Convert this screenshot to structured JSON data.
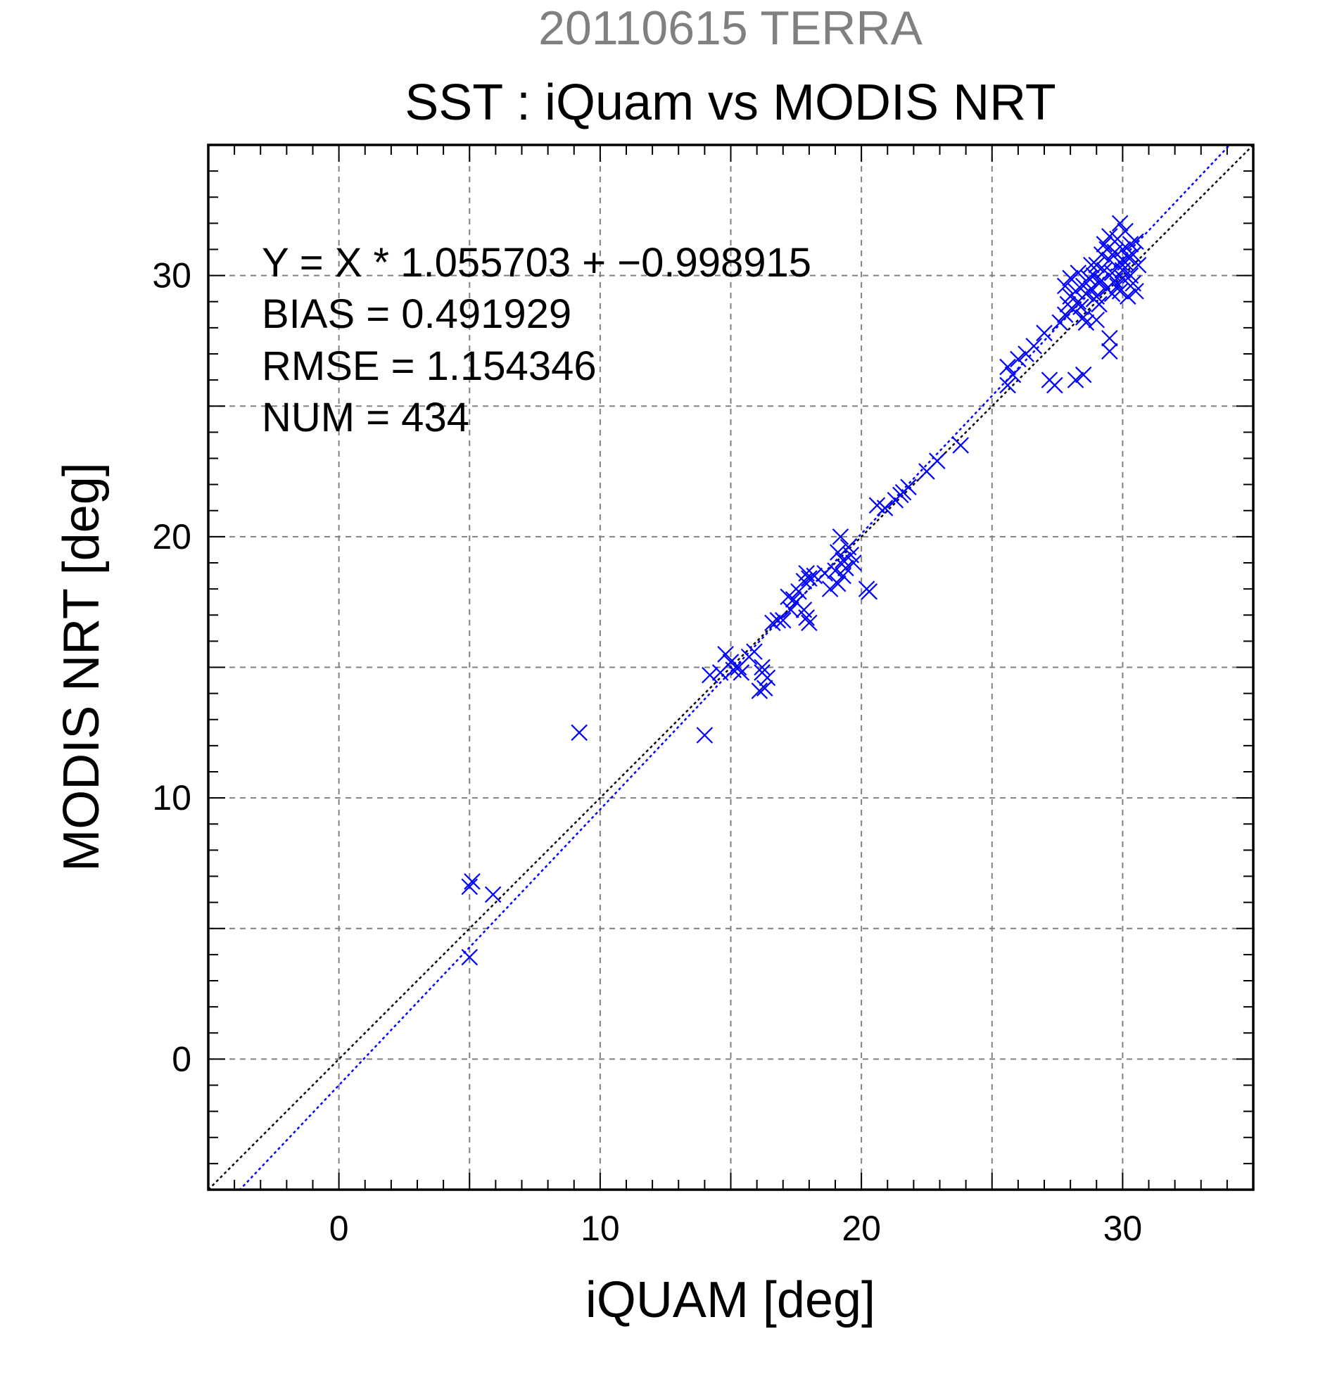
{
  "chart_data": {
    "type": "scatter",
    "suptitle": "20110615 TERRA",
    "title": "SST : iQuam vs MODIS NRT",
    "xlabel": "iQUAM [deg]",
    "ylabel": "MODIS NRT [deg]",
    "xlim": [
      -5,
      35
    ],
    "ylim": [
      -5,
      35
    ],
    "xticks": [
      0,
      10,
      20,
      30
    ],
    "yticks": [
      0,
      10,
      20,
      30
    ],
    "grid_step": 5,
    "grid": true,
    "colors": {
      "suptitle": "#808080",
      "points": "#0000ff",
      "fit_line": "#0000ff",
      "identity_line": "#000000",
      "grid": "#808080"
    },
    "annotations": [
      "Y = X * 1.055703 + −0.998915",
      "BIAS = 0.491929",
      "RMSE = 1.154346",
      "NUM = 434"
    ],
    "fit": {
      "slope": 1.055703,
      "intercept": -0.998915
    },
    "identity": {
      "slope": 1,
      "intercept": 0
    },
    "series": [
      {
        "marker": "x",
        "points": [
          [
            5.0,
            6.6
          ],
          [
            5.1,
            6.8
          ],
          [
            5.9,
            6.3
          ],
          [
            5.0,
            3.9
          ],
          [
            9.2,
            12.5
          ],
          [
            14.0,
            12.4
          ],
          [
            14.2,
            14.7
          ],
          [
            14.6,
            14.8
          ],
          [
            14.8,
            15.5
          ],
          [
            15.0,
            15.2
          ],
          [
            15.1,
            14.9
          ],
          [
            15.3,
            15.0
          ],
          [
            15.4,
            14.8
          ],
          [
            15.7,
            15.4
          ],
          [
            15.9,
            15.6
          ],
          [
            16.2,
            14.8
          ],
          [
            16.3,
            14.2
          ],
          [
            16.1,
            14.1
          ],
          [
            16.4,
            14.6
          ],
          [
            16.2,
            15.0
          ],
          [
            16.6,
            16.7
          ],
          [
            16.8,
            16.8
          ],
          [
            17.0,
            16.8
          ],
          [
            17.3,
            17.2
          ],
          [
            17.4,
            17.6
          ],
          [
            17.6,
            17.9
          ],
          [
            17.8,
            18.3
          ],
          [
            17.9,
            18.6
          ],
          [
            18.0,
            18.4
          ],
          [
            18.2,
            18.5
          ],
          [
            17.8,
            17.2
          ],
          [
            17.9,
            16.9
          ],
          [
            18.0,
            16.7
          ],
          [
            17.5,
            17.5
          ],
          [
            17.2,
            17.7
          ],
          [
            18.6,
            18.6
          ],
          [
            18.8,
            18.0
          ],
          [
            19.0,
            18.7
          ],
          [
            19.1,
            18.2
          ],
          [
            19.2,
            20.0
          ],
          [
            19.3,
            19.1
          ],
          [
            19.4,
            18.8
          ],
          [
            19.5,
            19.6
          ],
          [
            19.6,
            19.3
          ],
          [
            19.7,
            19.0
          ],
          [
            19.3,
            18.5
          ],
          [
            19.1,
            19.4
          ],
          [
            20.2,
            18.0
          ],
          [
            20.3,
            17.9
          ],
          [
            20.6,
            21.2
          ],
          [
            20.9,
            21.1
          ],
          [
            21.3,
            21.4
          ],
          [
            21.6,
            21.7
          ],
          [
            21.8,
            21.9
          ],
          [
            21.5,
            21.6
          ],
          [
            22.5,
            22.5
          ],
          [
            22.9,
            22.9
          ],
          [
            23.8,
            23.5
          ],
          [
            25.6,
            26.5
          ],
          [
            25.8,
            26.2
          ],
          [
            25.6,
            25.8
          ],
          [
            26.0,
            26.8
          ],
          [
            26.3,
            27.0
          ],
          [
            26.6,
            27.3
          ],
          [
            27.2,
            26.0
          ],
          [
            27.4,
            25.8
          ],
          [
            28.2,
            26.0
          ],
          [
            28.5,
            26.2
          ],
          [
            27.0,
            27.8
          ],
          [
            27.6,
            28.2
          ],
          [
            27.8,
            28.5
          ],
          [
            27.9,
            28.9
          ],
          [
            28.0,
            29.2
          ],
          [
            28.1,
            28.7
          ],
          [
            28.2,
            29.4
          ],
          [
            28.3,
            29.0
          ],
          [
            28.4,
            28.8
          ],
          [
            28.5,
            29.6
          ],
          [
            28.6,
            29.3
          ],
          [
            28.7,
            29.9
          ],
          [
            28.8,
            29.5
          ],
          [
            28.9,
            30.0
          ],
          [
            28.9,
            29.1
          ],
          [
            29.0,
            30.4
          ],
          [
            29.1,
            29.7
          ],
          [
            29.1,
            28.9
          ],
          [
            29.2,
            30.8
          ],
          [
            29.3,
            30.2
          ],
          [
            29.3,
            31.2
          ],
          [
            29.4,
            29.5
          ],
          [
            29.5,
            30.6
          ],
          [
            29.5,
            31.5
          ],
          [
            29.6,
            30.1
          ],
          [
            29.7,
            30.9
          ],
          [
            29.7,
            29.8
          ],
          [
            29.8,
            31.4
          ],
          [
            29.9,
            30.5
          ],
          [
            29.9,
            32.0
          ],
          [
            30.0,
            31.0
          ],
          [
            30.0,
            30.2
          ],
          [
            30.1,
            31.7
          ],
          [
            30.2,
            30.7
          ],
          [
            30.3,
            31.2
          ],
          [
            30.3,
            30.0
          ],
          [
            30.4,
            30.8
          ],
          [
            30.5,
            31.3
          ],
          [
            30.6,
            30.4
          ],
          [
            29.5,
            27.6
          ],
          [
            29.5,
            27.1
          ],
          [
            29.0,
            28.3
          ],
          [
            28.6,
            28.2
          ],
          [
            30.5,
            29.4
          ],
          [
            30.2,
            29.2
          ],
          [
            29.9,
            29.4
          ],
          [
            30.4,
            29.7
          ],
          [
            30.0,
            29.9
          ],
          [
            28.0,
            29.9
          ],
          [
            27.8,
            29.6
          ],
          [
            28.3,
            30.1
          ],
          [
            29.2,
            29.8
          ],
          [
            29.6,
            29.3
          ],
          [
            29.8,
            29.6
          ],
          [
            30.1,
            30.5
          ],
          [
            29.4,
            31.0
          ],
          [
            28.8,
            30.4
          ],
          [
            28.5,
            28.4
          ],
          [
            29.0,
            29.2
          ]
        ]
      }
    ]
  }
}
